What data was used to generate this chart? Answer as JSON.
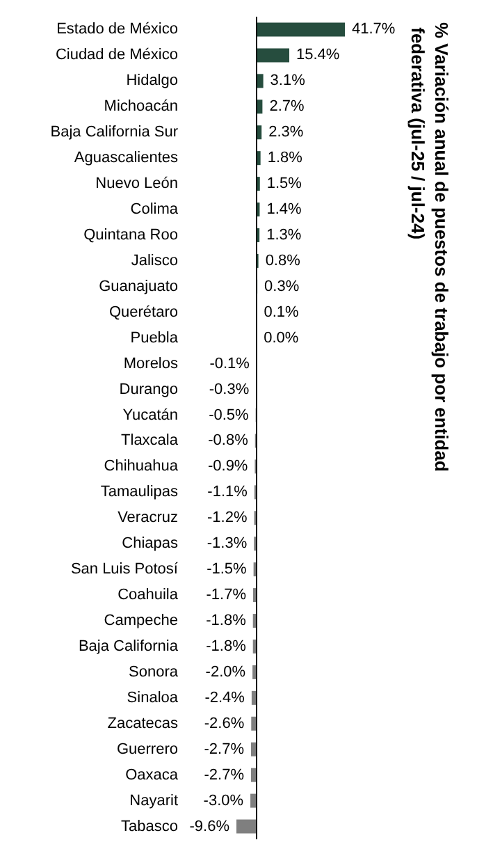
{
  "chart_data": {
    "type": "bar",
    "orientation": "horizontal",
    "title": "% Variación anual de puestos de trabajo por entidad federativa (jul-25 / jul-24)",
    "categories": [
      "Estado de México",
      "Ciudad de México",
      "Hidalgo",
      "Michoacán",
      "Baja California Sur",
      "Aguascalientes",
      "Nuevo León",
      "Colima",
      "Quintana Roo",
      "Jalisco",
      "Guanajuato",
      "Querétaro",
      "Puebla",
      "Morelos",
      "Durango",
      "Yucatán",
      "Tlaxcala",
      "Chihuahua",
      "Tamaulipas",
      "Veracruz",
      "Chiapas",
      "San Luis Potosí",
      "Coahuila",
      "Campeche",
      "Baja California",
      "Sonora",
      "Sinaloa",
      "Zacatecas",
      "Guerrero",
      "Oaxaca",
      "Nayarit",
      "Tabasco"
    ],
    "values": [
      41.7,
      15.4,
      3.1,
      2.7,
      2.3,
      1.8,
      1.5,
      1.4,
      1.3,
      0.8,
      0.3,
      0.1,
      0.0,
      -0.1,
      -0.3,
      -0.5,
      -0.8,
      -0.9,
      -1.1,
      -1.2,
      -1.3,
      -1.5,
      -1.7,
      -1.8,
      -1.8,
      -2.0,
      -2.4,
      -2.6,
      -2.7,
      -2.7,
      -3.0,
      -9.6
    ],
    "value_labels": [
      "41.7%",
      "15.4%",
      "3.1%",
      "2.7%",
      "2.3%",
      "1.8%",
      "1.5%",
      "1.4%",
      "1.3%",
      "0.8%",
      "0.3%",
      "0.1%",
      "0.0%",
      "-0.1%",
      "-0.3%",
      "-0.5%",
      "-0.8%",
      "-0.9%",
      "-1.1%",
      "-1.2%",
      "-1.3%",
      "-1.5%",
      "-1.7%",
      "-1.8%",
      "-1.8%",
      "-2.0%",
      "-2.4%",
      "-2.6%",
      "-2.7%",
      "-2.7%",
      "-3.0%",
      "-9.6%"
    ],
    "colors": [
      "#264d3e",
      "#264d3e",
      "#264d3e",
      "#264d3e",
      "#264d3e",
      "#264d3e",
      "#264d3e",
      "#264d3e",
      "#264d3e",
      "#264d3e",
      "#264d3e",
      "#264d3e",
      "#264d3e",
      "#7f7f7f",
      "#7f7f7f",
      "#7f7f7f",
      "#7f7f7f",
      "#7f7f7f",
      "#7f7f7f",
      "#7f7f7f",
      "#7f7f7f",
      "#7f7f7f",
      "#7f7f7f",
      "#7f7f7f",
      "#7f7f7f",
      "#7f7f7f",
      "#7f7f7f",
      "#7f7f7f",
      "#7f7f7f",
      "#7f7f7f",
      "#7f7f7f",
      "#7f7f7f"
    ]
  }
}
